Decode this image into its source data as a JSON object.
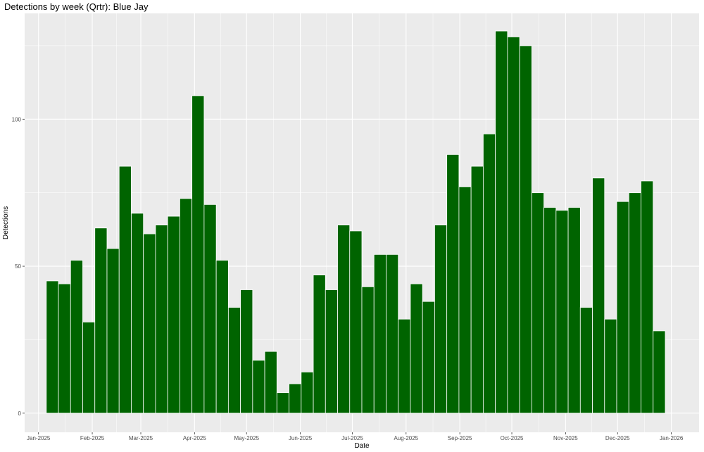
{
  "chart_data": {
    "type": "bar",
    "title": "Detections by week (Qrtr): Blue Jay",
    "xlabel": "Date",
    "ylabel": "Detections",
    "bar_color": "#006400",
    "panel_color": "#EBEBEB",
    "grid": true,
    "x_range": [
      "2024-12-24",
      "2026-01-17"
    ],
    "ylim": [
      -6.5,
      136
    ],
    "x_ticks": [
      {
        "date": "2025-01-01",
        "label": "Jan-2025"
      },
      {
        "date": "2025-02-01",
        "label": "Feb-2025"
      },
      {
        "date": "2025-03-01",
        "label": "Mar-2025"
      },
      {
        "date": "2025-04-01",
        "label": "Apr-2025"
      },
      {
        "date": "2025-05-01",
        "label": "May-2025"
      },
      {
        "date": "2025-06-01",
        "label": "Jun-2025"
      },
      {
        "date": "2025-07-01",
        "label": "Jul-2025"
      },
      {
        "date": "2025-08-01",
        "label": "Aug-2025"
      },
      {
        "date": "2025-09-01",
        "label": "Sep-2025"
      },
      {
        "date": "2025-10-01",
        "label": "Oct-2025"
      },
      {
        "date": "2025-11-01",
        "label": "Nov-2025"
      },
      {
        "date": "2025-12-01",
        "label": "Dec-2025"
      },
      {
        "date": "2026-01-01",
        "label": "Jan-2026"
      }
    ],
    "y_ticks": [
      0,
      50,
      100
    ],
    "weeks": [
      "2025-01-09",
      "2025-01-16",
      "2025-01-23",
      "2025-01-30",
      "2025-02-06",
      "2025-02-13",
      "2025-02-20",
      "2025-02-27",
      "2025-03-06",
      "2025-03-13",
      "2025-03-20",
      "2025-03-27",
      "2025-04-03",
      "2025-04-10",
      "2025-04-17",
      "2025-04-24",
      "2025-05-01",
      "2025-05-08",
      "2025-05-15",
      "2025-05-22",
      "2025-05-29",
      "2025-06-05",
      "2025-06-12",
      "2025-06-19",
      "2025-06-26",
      "2025-07-03",
      "2025-07-10",
      "2025-07-17",
      "2025-07-24",
      "2025-07-31",
      "2025-08-07",
      "2025-08-14",
      "2025-08-21",
      "2025-08-28",
      "2025-09-04",
      "2025-09-11",
      "2025-09-18",
      "2025-09-25",
      "2025-10-02",
      "2025-10-09",
      "2025-10-16",
      "2025-10-23",
      "2025-10-30",
      "2025-11-06",
      "2025-11-13",
      "2025-11-20",
      "2025-11-27",
      "2025-12-04",
      "2025-12-11",
      "2025-12-18",
      "2025-12-25"
    ],
    "values": [
      45,
      44,
      52,
      31,
      63,
      56,
      84,
      68,
      61,
      64,
      67,
      73,
      108,
      71,
      52,
      36,
      42,
      18,
      21,
      7,
      10,
      14,
      47,
      42,
      64,
      62,
      43,
      54,
      54,
      32,
      44,
      38,
      64,
      88,
      77,
      84,
      95,
      130,
      128,
      125,
      75,
      70,
      69,
      70,
      36,
      80,
      32,
      72,
      75,
      79,
      28
    ]
  }
}
